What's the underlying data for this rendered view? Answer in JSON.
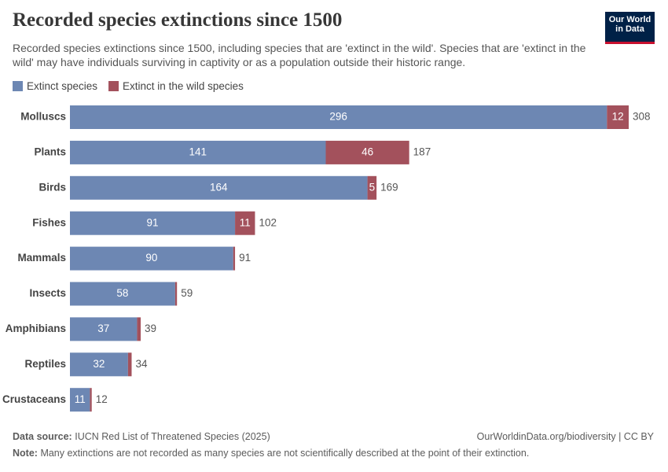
{
  "chart_data": {
    "type": "stacked-bar-horizontal",
    "title": "Recorded species extinctions since 1500",
    "subtitle": "Recorded species extinctions since 1500, including species that are 'extinct in the wild'. Species that are 'extinct in the wild' may have individuals surviving in captivity or as a population outside their historic range.",
    "logo": "Our World in Data",
    "categories": [
      "Molluscs",
      "Plants",
      "Birds",
      "Fishes",
      "Mammals",
      "Insects",
      "Amphibians",
      "Reptiles",
      "Crustaceans"
    ],
    "series": [
      {
        "name": "Extinct species",
        "color": "#6d87b3",
        "values": [
          296,
          141,
          164,
          91,
          90,
          58,
          37,
          32,
          11
        ]
      },
      {
        "name": "Extinct in the wild species",
        "color": "#a3515c",
        "values": [
          12,
          46,
          5,
          11,
          1,
          1,
          2,
          2,
          1
        ]
      }
    ],
    "totals": [
      308,
      187,
      169,
      102,
      91,
      59,
      39,
      34,
      12
    ],
    "source_label": "Data source:",
    "source": "IUCN Red List of Threatened Species (2025)",
    "url": "OurWorldinData.org/biodiversity | CC BY",
    "note_label": "Note:",
    "note": "Many extinctions are not recorded as many species are not scientifically described at the point of their extinction."
  }
}
